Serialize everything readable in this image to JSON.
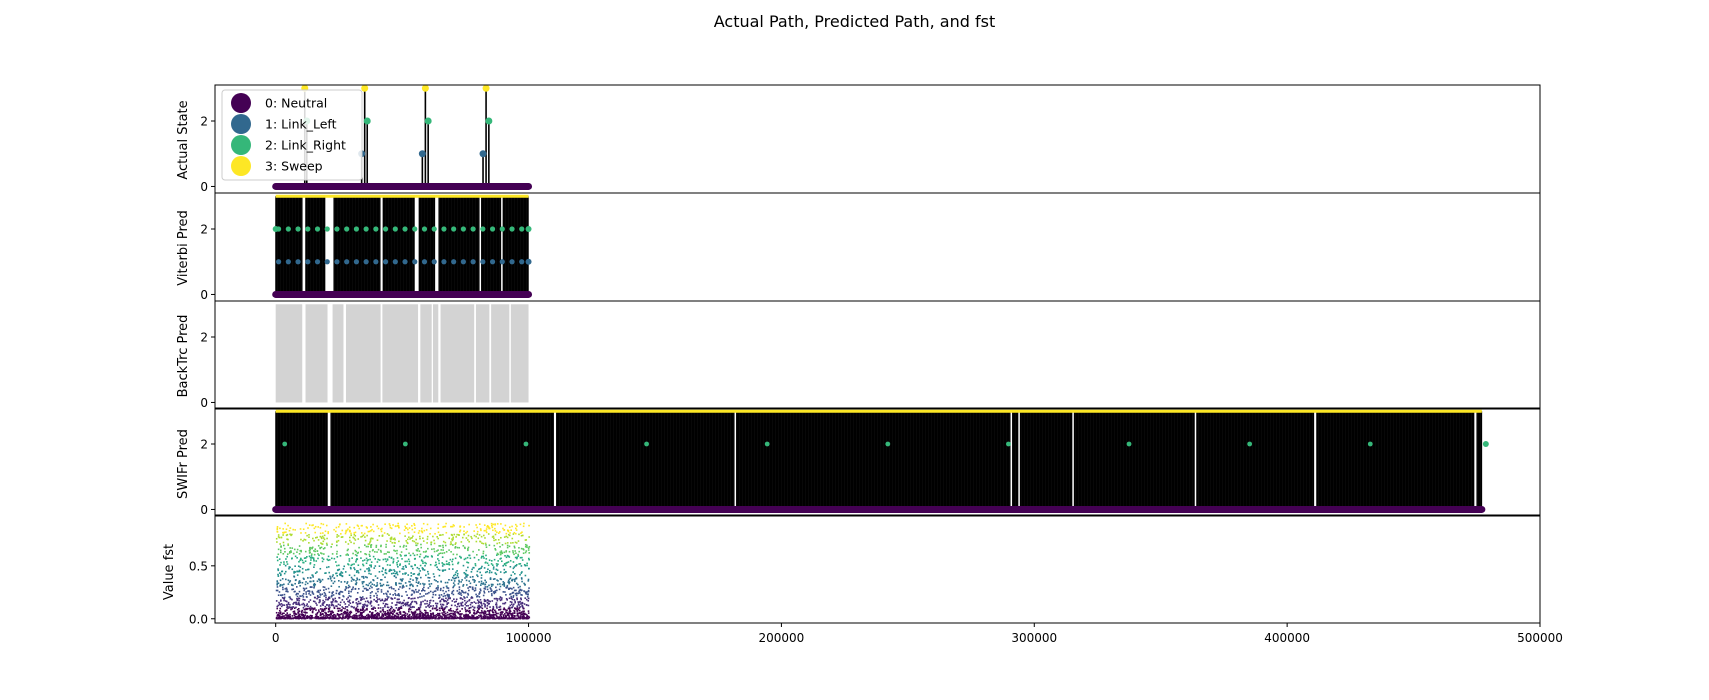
{
  "chart_data": {
    "type": "scatter",
    "title": "Actual Path, Predicted Path, and fst",
    "xlim": [
      -24000,
      500000
    ],
    "xticks": [
      0,
      100000,
      200000,
      300000,
      400000,
      500000
    ],
    "xtick_labels": [
      "0",
      "100000",
      "200000",
      "300000",
      "400000",
      "500000"
    ],
    "state_colors": {
      "0": "#440154",
      "1": "#31688e",
      "2": "#35b779",
      "3": "#fde725"
    },
    "legend": {
      "placement": "upper-left",
      "entries": [
        {
          "label": "0: Neutral",
          "color": "#440154"
        },
        {
          "label": "1: Link_Left",
          "color": "#31688e"
        },
        {
          "label": "2: Link_Right",
          "color": "#35b779"
        },
        {
          "label": "3: Sweep",
          "color": "#fde725"
        }
      ]
    },
    "panels": [
      {
        "id": "actual",
        "ylabel": "Actual State",
        "ylim": [
          -0.2,
          3.1
        ],
        "yticks": [
          0,
          2
        ],
        "x_range": [
          0,
          100000
        ],
        "baseline": 0,
        "events": [
          {
            "x": 11500,
            "y": 3
          },
          {
            "x": 12300,
            "y": 2
          },
          {
            "x": 34000,
            "y": 1
          },
          {
            "x": 35200,
            "y": 3
          },
          {
            "x": 36200,
            "y": 2
          },
          {
            "x": 58000,
            "y": 1
          },
          {
            "x": 59200,
            "y": 3
          },
          {
            "x": 60300,
            "y": 2
          },
          {
            "x": 82000,
            "y": 1
          },
          {
            "x": 83200,
            "y": 3
          },
          {
            "x": 84300,
            "y": 2
          }
        ]
      },
      {
        "id": "viterbi",
        "ylabel": "Viterbi Pred",
        "ylim": [
          -0.2,
          3.1
        ],
        "yticks": [
          0,
          2
        ],
        "x_range": [
          0,
          100000
        ],
        "gaps": [
          [
            10500,
            11800
          ],
          [
            19600,
            22800
          ],
          [
            41500,
            42300
          ],
          [
            55000,
            56500
          ],
          [
            63000,
            64500
          ],
          [
            80500,
            81300
          ],
          [
            89000,
            89800
          ]
        ]
      },
      {
        "id": "backtrc",
        "ylabel": "BackTrc Pred",
        "ylim": [
          -0.2,
          3.1
        ],
        "yticks": [
          0,
          2
        ],
        "x_range": [
          0,
          100000
        ],
        "gaps": [
          [
            10500,
            11800
          ],
          [
            20500,
            22500
          ],
          [
            26800,
            27800
          ],
          [
            41500,
            42200
          ],
          [
            56300,
            57200
          ],
          [
            61700,
            62200
          ],
          [
            64300,
            65200
          ],
          [
            78500,
            79200
          ],
          [
            84500,
            85200
          ],
          [
            92400,
            93000
          ]
        ],
        "color": "#d3d3d3"
      },
      {
        "id": "swifr",
        "ylabel": "SWIFr Pred",
        "ylim": [
          -0.2,
          3.1
        ],
        "yticks": [
          0,
          2
        ],
        "x_range": [
          0,
          477000
        ],
        "gaps": [
          [
            20500,
            21800
          ],
          [
            110000,
            111000
          ],
          [
            181300,
            182200
          ],
          [
            315000,
            315800
          ],
          [
            290500,
            291300
          ],
          [
            293700,
            294400
          ],
          [
            363300,
            364000
          ],
          [
            410500,
            411500
          ],
          [
            474000,
            475000
          ]
        ]
      },
      {
        "id": "fst",
        "ylabel": "Value fst",
        "ylim": [
          -0.04,
          0.98
        ],
        "yticks": [
          0,
          0.5
        ],
        "ytick_labels": [
          "0.0",
          "0.5"
        ],
        "x_range": [
          0,
          100000
        ],
        "value_range": [
          0,
          0.9
        ]
      }
    ]
  }
}
